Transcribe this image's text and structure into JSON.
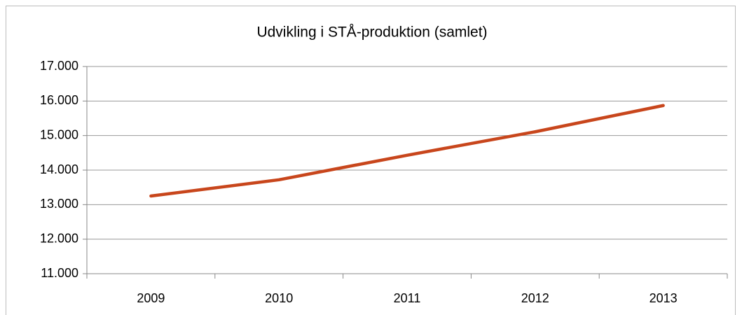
{
  "chart_data": {
    "type": "line",
    "title": "Udvikling i STÅ-produktion (samlet)",
    "categories": [
      "2009",
      "2010",
      "2011",
      "2012",
      "2013"
    ],
    "series": [
      {
        "name": "STÅ-produktion",
        "color": "#c8461c",
        "values": [
          13250,
          13720,
          14430,
          15110,
          15870
        ]
      }
    ],
    "ylim": [
      11000,
      17000
    ],
    "yticks": [
      {
        "value": 11000,
        "label": "11.000"
      },
      {
        "value": 12000,
        "label": "12.000"
      },
      {
        "value": 13000,
        "label": "13.000"
      },
      {
        "value": 14000,
        "label": "14.000"
      },
      {
        "value": 15000,
        "label": "15.000"
      },
      {
        "value": 16000,
        "label": "16.000"
      },
      {
        "value": 17000,
        "label": "17.000"
      }
    ],
    "grid": true
  }
}
